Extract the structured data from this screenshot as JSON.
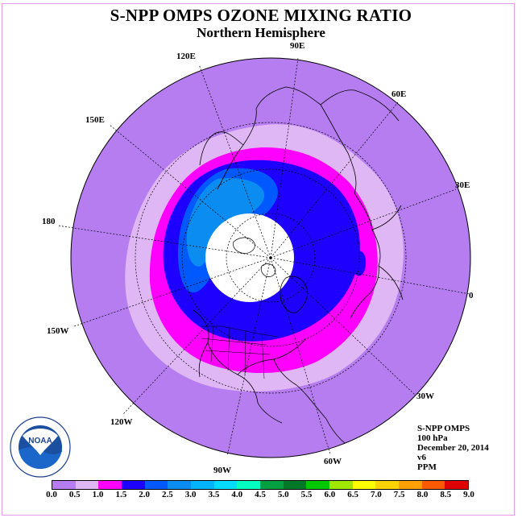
{
  "header": {
    "title": "S-NPP OMPS OZONE MIXING RATIO",
    "subtitle": "Northern Hemisphere"
  },
  "map": {
    "projection": "north-polar-stereographic",
    "longitude_labels": [
      "90E",
      "60E",
      "30E",
      "0",
      "30W",
      "60W",
      "90W",
      "120W",
      "150W",
      "180",
      "150E",
      "120E"
    ],
    "background_color": "#ffffff",
    "coastline_color": "#000000"
  },
  "info": {
    "instrument": "S-NPP OMPS",
    "level": "100 hPa",
    "date": "December 20, 2014",
    "version": "v6",
    "units": "PPM"
  },
  "colorbar": {
    "ticks": [
      "0.0",
      "0.5",
      "1.0",
      "1.5",
      "2.0",
      "2.5",
      "3.0",
      "3.5",
      "4.0",
      "4.5",
      "5.0",
      "5.5",
      "6.0",
      "6.5",
      "7.0",
      "7.5",
      "8.0",
      "8.5",
      "9.0"
    ],
    "colors": [
      "#b57df0",
      "#e0b7f5",
      "#ff00ff",
      "#1e00ff",
      "#0058ff",
      "#0a8cf0",
      "#00b4ff",
      "#00dcff",
      "#00ffc0",
      "#00a040",
      "#007828",
      "#00c800",
      "#a0e600",
      "#ffff00",
      "#ffd200",
      "#ffa000",
      "#ff5a00",
      "#e10000",
      "#8b5a3c"
    ]
  },
  "logo": {
    "text": "NOAA",
    "ring_text": "NATIONAL OCEANIC AND ATMOSPHERIC ADMINISTRATION · U.S. DEPARTMENT OF COMMERCE"
  }
}
